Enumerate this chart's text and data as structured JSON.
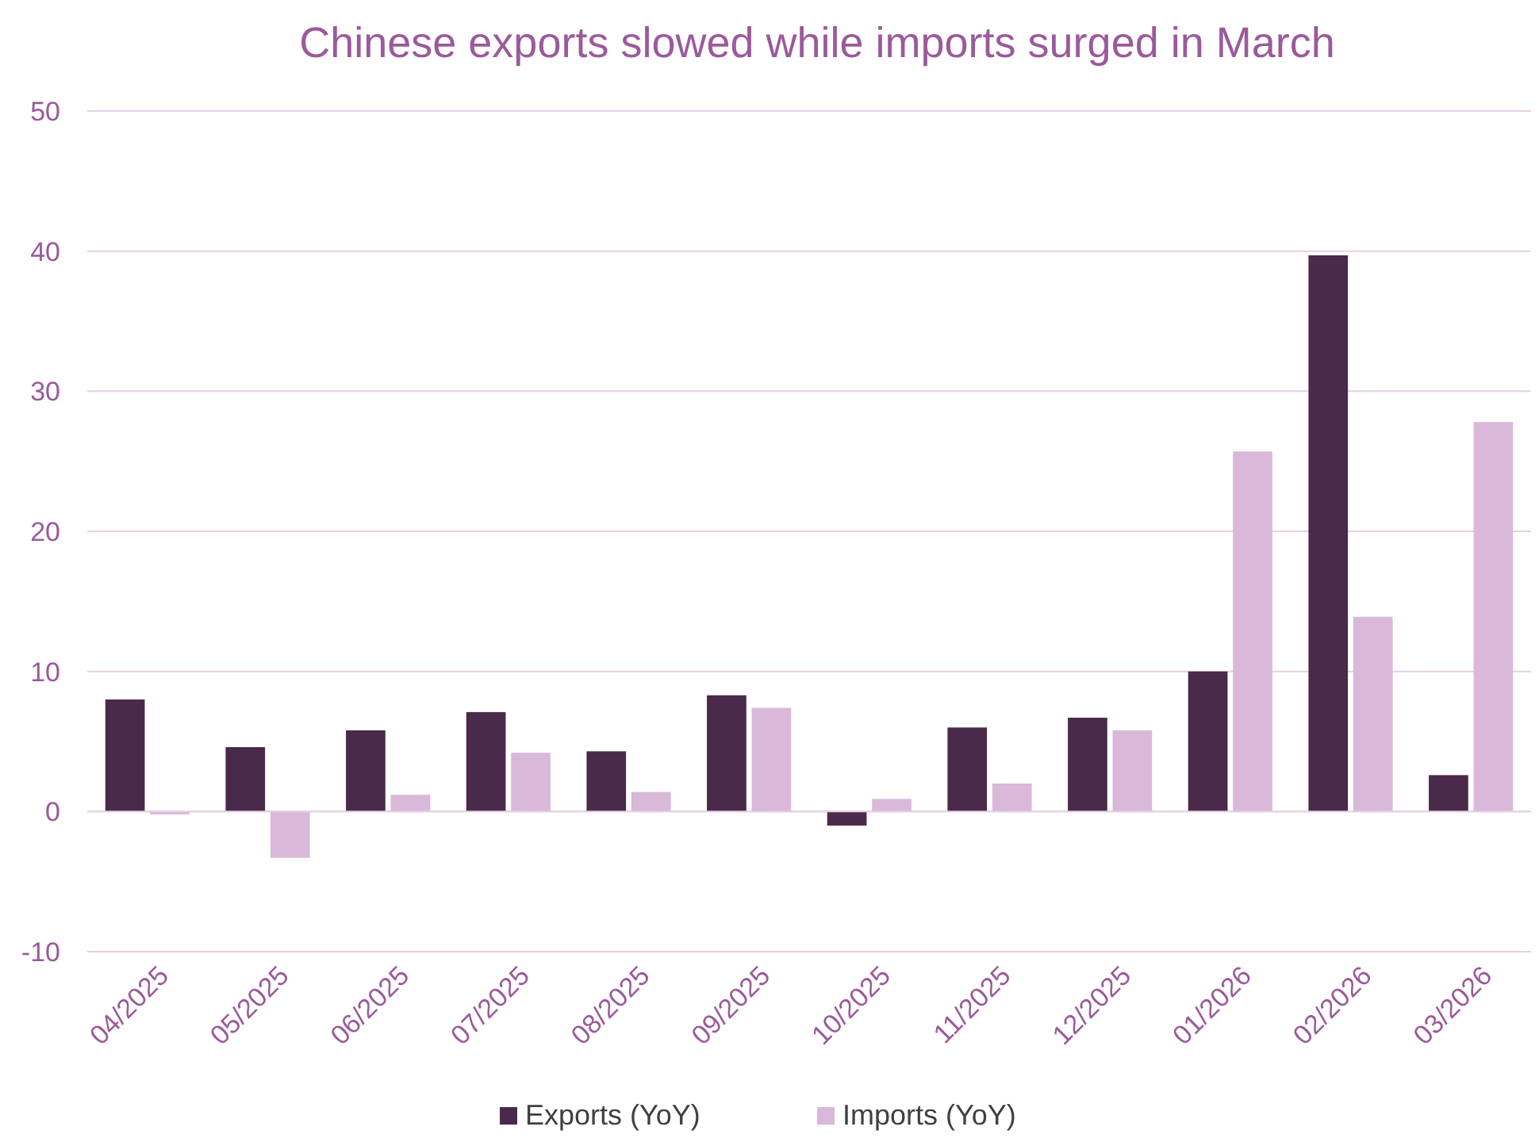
{
  "chart_data": {
    "type": "bar",
    "title": "Chinese exports slowed while imports surged in March",
    "categories": [
      "04/2025",
      "05/2025",
      "06/2025",
      "07/2025",
      "08/2025",
      "09/2025",
      "10/2025",
      "11/2025",
      "12/2025",
      "01/2026",
      "02/2026",
      "03/2026"
    ],
    "series": [
      {
        "name": "Exports (YoY)",
        "color": "#4a2a4a",
        "values": [
          8.0,
          4.6,
          5.8,
          7.1,
          4.3,
          8.3,
          -1.0,
          6.0,
          6.7,
          10.0,
          39.7,
          2.6
        ]
      },
      {
        "name": "Imports (YoY)",
        "color": "#d9b8d9",
        "values": [
          -0.2,
          -3.3,
          1.2,
          4.2,
          1.4,
          7.4,
          0.9,
          2.0,
          5.8,
          25.7,
          13.9,
          27.8
        ]
      }
    ],
    "ylim": [
      -10,
      50
    ],
    "yticks": [
      -10,
      0,
      10,
      20,
      30,
      40,
      50
    ],
    "grid": "y",
    "legend": "bottom"
  }
}
